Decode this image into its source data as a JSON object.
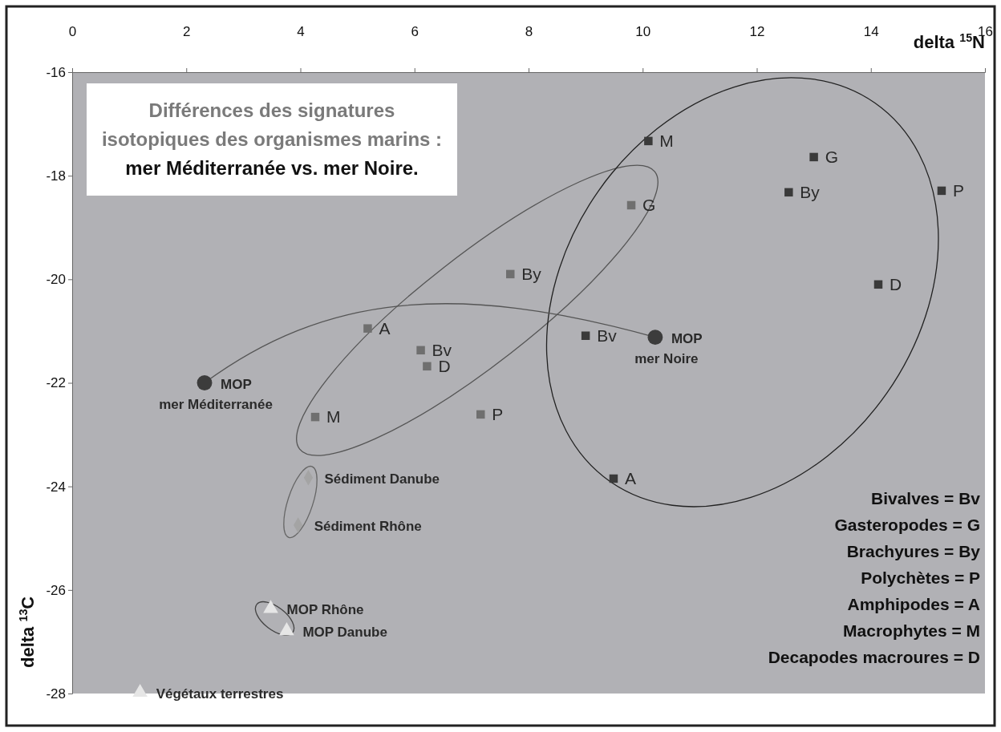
{
  "chart_data": {
    "type": "scatter",
    "title": "Différences des signatures isotopiques des organismes marins : mer Méditerranée vs. mer Noire.",
    "xlabel": "delta $^{15}$N",
    "ylabel": "delta $^{13}$C",
    "xlim": [
      0,
      16
    ],
    "xticks": [
      0,
      2,
      4,
      6,
      8,
      10,
      12,
      14,
      16
    ],
    "ylim": [
      -28,
      -16
    ],
    "yticks": [
      -28,
      -26,
      -24,
      -22,
      -20,
      -18,
      -16
    ],
    "grid": false,
    "series": [
      {
        "color": "#6f6f6f",
        "marker": "square",
        "x": [
          5.18,
          6.11,
          6.22,
          7.68,
          9.8,
          4.26,
          7.16
        ],
        "values": [
          -20.95,
          -21.37,
          -21.68,
          -19.9,
          -18.57,
          -22.66,
          -22.61
        ]
      },
      {
        "color": "#3a3a3a",
        "marker": "square",
        "x": [
          10.1,
          13.0,
          12.56,
          15.24,
          14.13,
          9.0,
          9.49
        ],
        "values": [
          -17.33,
          -17.64,
          -18.32,
          -18.29,
          -20.1,
          -21.09,
          -23.85
        ]
      },
      {
        "color": "#3c3c3c",
        "marker": "circle",
        "x": [
          2.32,
          10.22
        ],
        "values": [
          -22.0,
          -21.12
        ]
      },
      {
        "color": "#a4a4a4",
        "marker": "diamond",
        "x": [
          4.14,
          3.96
        ],
        "values": [
          -23.83,
          -24.75
        ]
      },
      {
        "color": "#e6e6e6",
        "marker": "triangle",
        "x": [
          3.48,
          3.76,
          1.19
        ],
        "values": [
          -26.36,
          -26.79,
          -27.98
        ]
      }
    ],
    "annotations": [
      {
        "text": "A",
        "x": 5.18,
        "y": -20.95
      },
      {
        "text": "Bv",
        "x": 6.11,
        "y": -21.37
      },
      {
        "text": "D",
        "x": 6.22,
        "y": -21.68
      },
      {
        "text": "By",
        "x": 7.68,
        "y": -19.9
      },
      {
        "text": "G",
        "x": 9.8,
        "y": -18.57
      },
      {
        "text": "M",
        "x": 4.26,
        "y": -22.66
      },
      {
        "text": "P",
        "x": 7.16,
        "y": -22.61
      },
      {
        "text": "M",
        "x": 10.1,
        "y": -17.33
      },
      {
        "text": "G",
        "x": 13.0,
        "y": -17.64
      },
      {
        "text": "By",
        "x": 12.56,
        "y": -18.32
      },
      {
        "text": "P",
        "x": 15.24,
        "y": -18.29
      },
      {
        "text": "D",
        "x": 14.13,
        "y": -20.1
      },
      {
        "text": "Bv",
        "x": 9.0,
        "y": -21.09
      },
      {
        "text": "A",
        "x": 9.49,
        "y": -23.85
      },
      {
        "text": "MOP\nmer Méditerranée",
        "x": 2.32,
        "y": -22.0
      },
      {
        "text": "MOP\nmer Noire",
        "x": 10.22,
        "y": -21.12
      },
      {
        "text": "Sédiment Danube",
        "x": 4.14,
        "y": -23.83
      },
      {
        "text": "Sédiment Rhône",
        "x": 3.96,
        "y": -24.75
      },
      {
        "text": "MOP Rhône",
        "x": 3.48,
        "y": -26.36
      },
      {
        "text": "MOP Danube",
        "x": 3.76,
        "y": -26.79
      },
      {
        "text": "Végétaux terrestres",
        "x": 1.19,
        "y": -27.98
      },
      "Bivalves = Bv",
      "Gasteropodes = G",
      "Brachyures = By",
      "Polychètes = P",
      "Amphipodes = A",
      "Macrophytes = M",
      "Decapodes macroures = D"
    ]
  }
}
